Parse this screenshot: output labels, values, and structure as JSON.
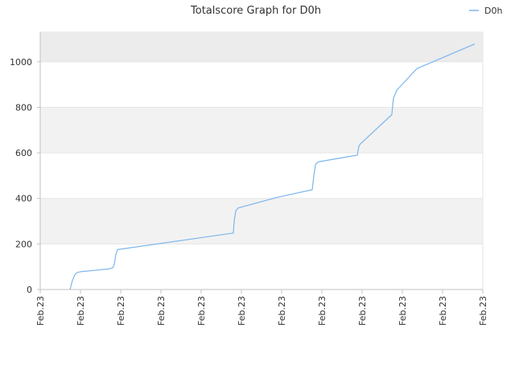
{
  "chart_data": {
    "type": "line",
    "title": "Totalscore Graph for D0h",
    "xlabel": "",
    "ylabel": "",
    "x_tick_labels": [
      "Feb.23",
      "Feb.23",
      "Feb.23",
      "Feb.23",
      "Feb.23",
      "Feb.23",
      "Feb.23",
      "Feb.23",
      "Feb.23",
      "Feb.23",
      "Feb.23",
      "Feb.23"
    ],
    "ylim": [
      0,
      1130
    ],
    "y_ticks": [
      0,
      200,
      400,
      600,
      800,
      1000
    ],
    "y_tick_labels": [
      "0",
      "200",
      "400",
      "600",
      "800",
      "1000"
    ],
    "grid": true,
    "legend": {
      "position": "top-right"
    },
    "series": [
      {
        "name": "D0h",
        "color": "#7cb5ec",
        "x_range": [
          0,
          11
        ],
        "points": [
          [
            0.74,
            0
          ],
          [
            0.8,
            40
          ],
          [
            0.86,
            65
          ],
          [
            0.92,
            75
          ],
          [
            1.0,
            78
          ],
          [
            1.7,
            90
          ],
          [
            1.8,
            95
          ],
          [
            1.84,
            110
          ],
          [
            1.88,
            155
          ],
          [
            1.92,
            175
          ],
          [
            4.8,
            248
          ],
          [
            4.82,
            300
          ],
          [
            4.86,
            345
          ],
          [
            4.92,
            358
          ],
          [
            5.9,
            405
          ],
          [
            6.76,
            438
          ],
          [
            6.8,
            500
          ],
          [
            6.84,
            548
          ],
          [
            6.9,
            560
          ],
          [
            7.88,
            590
          ],
          [
            7.92,
            630
          ],
          [
            7.96,
            640
          ],
          [
            8.74,
            768
          ],
          [
            8.76,
            810
          ],
          [
            8.78,
            840
          ],
          [
            8.86,
            875
          ],
          [
            8.94,
            890
          ],
          [
            9.36,
            970
          ],
          [
            10.8,
            1078
          ]
        ]
      }
    ],
    "colors": {
      "background": "#ffffff",
      "band_alt": "#f2f2f2",
      "band_top": "#ececec",
      "gridline": "#e6e6e6",
      "axis": "#c0c0c0"
    }
  }
}
